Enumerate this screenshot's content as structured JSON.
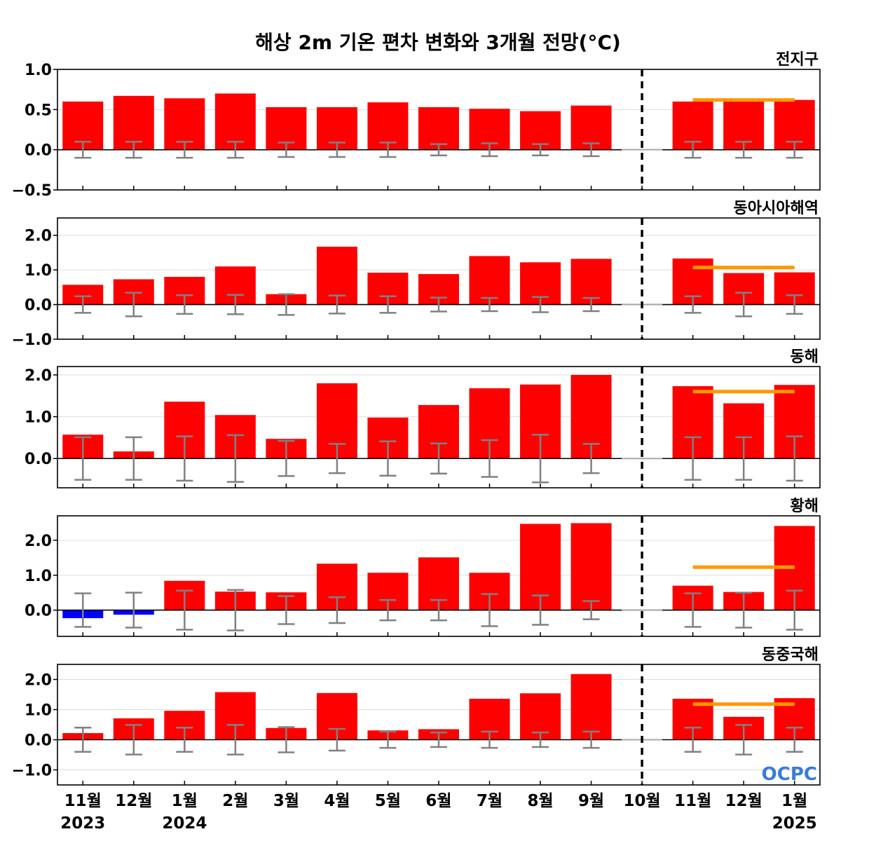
{
  "title": "해상 2m 기온 편차 변화와 3개월 전망(°C)",
  "logo": "OCPC",
  "colors": {
    "positive": "#ff0000",
    "negative": "#0000ff",
    "forecast": "#ff9900",
    "errorbar": "#808080",
    "divider": "#000000"
  },
  "months": [
    "11월",
    "12월",
    "1월",
    "2월",
    "3월",
    "4월",
    "5월",
    "6월",
    "7월",
    "8월",
    "9월",
    "10월",
    "11월",
    "12월",
    "1월"
  ],
  "years": [
    {
      "label": "2023",
      "month_index": 0
    },
    {
      "label": "2024",
      "month_index": 2
    },
    {
      "label": "2025",
      "month_index": 14
    }
  ],
  "divider_month_index": 11,
  "chart_data": [
    {
      "type": "bar",
      "title": "전지구",
      "ylim": [
        -0.5,
        1.0
      ],
      "yticks": [
        -0.5,
        0.0,
        0.5,
        1.0
      ],
      "tick_labels": [
        "−0.5",
        "0.0",
        "0.5",
        "1.0"
      ],
      "values": [
        0.6,
        0.67,
        0.64,
        0.7,
        0.53,
        0.53,
        0.59,
        0.53,
        0.51,
        0.48,
        0.55,
        0.0,
        0.6,
        0.62,
        0.62
      ],
      "error_bars": [
        0.1,
        0.1,
        0.1,
        0.1,
        0.09,
        0.09,
        0.09,
        0.07,
        0.08,
        0.07,
        0.08,
        null,
        0.1,
        0.1,
        0.1
      ],
      "forecast": {
        "value": 0.62,
        "start_index": 12,
        "end_index": 14
      }
    },
    {
      "type": "bar",
      "title": "동아시아해역",
      "ylim": [
        -1.0,
        2.5
      ],
      "yticks": [
        -1.0,
        0.0,
        1.0,
        2.0
      ],
      "tick_labels": [
        "−1.0",
        "0.0",
        "1.0",
        "2.0"
      ],
      "values": [
        0.57,
        0.73,
        0.8,
        1.1,
        0.3,
        1.67,
        0.92,
        0.88,
        1.4,
        1.22,
        1.32,
        0.0,
        1.33,
        0.91,
        0.93
      ],
      "error_bars": [
        0.24,
        0.34,
        0.27,
        0.28,
        0.3,
        0.26,
        0.24,
        0.2,
        0.19,
        0.22,
        0.19,
        null,
        0.24,
        0.34,
        0.27
      ],
      "forecast": {
        "value": 1.07,
        "start_index": 12,
        "end_index": 14
      }
    },
    {
      "type": "bar",
      "title": "동해",
      "ylim": [
        -0.7,
        2.2
      ],
      "yticks": [
        0.0,
        1.0,
        2.0
      ],
      "tick_labels": [
        "0.0",
        "1.0",
        "2.0"
      ],
      "values": [
        0.57,
        0.17,
        1.36,
        1.04,
        0.47,
        1.8,
        0.98,
        1.28,
        1.68,
        1.77,
        2.0,
        0.0,
        1.73,
        1.32,
        1.76
      ],
      "error_bars": [
        0.51,
        0.51,
        0.53,
        0.56,
        0.42,
        0.35,
        0.41,
        0.36,
        0.44,
        0.57,
        0.35,
        null,
        0.51,
        0.51,
        0.53
      ],
      "forecast": {
        "value": 1.6,
        "start_index": 12,
        "end_index": 14
      }
    },
    {
      "type": "bar",
      "title": "황해",
      "ylim": [
        -0.75,
        2.7
      ],
      "yticks": [
        0.0,
        1.0,
        2.0
      ],
      "tick_labels": [
        "0.0",
        "1.0",
        "2.0"
      ],
      "values": [
        -0.23,
        -0.13,
        0.84,
        0.53,
        0.51,
        1.33,
        1.07,
        1.51,
        1.07,
        2.47,
        2.49,
        0.0,
        0.7,
        0.52,
        2.41
      ],
      "error_bars": [
        0.48,
        0.5,
        0.56,
        0.58,
        0.4,
        0.37,
        0.29,
        0.29,
        0.46,
        0.42,
        0.26,
        null,
        0.48,
        0.5,
        0.56
      ],
      "forecast": {
        "value": 1.23,
        "start_index": 12,
        "end_index": 14
      }
    },
    {
      "type": "bar",
      "title": "동중국해",
      "ylim": [
        -1.5,
        2.5
      ],
      "yticks": [
        -1.0,
        0.0,
        1.0,
        2.0
      ],
      "tick_labels": [
        "−1.0",
        "0.0",
        "1.0",
        "2.0"
      ],
      "values": [
        0.22,
        0.71,
        0.96,
        1.58,
        0.39,
        1.55,
        0.31,
        0.35,
        1.36,
        1.54,
        2.18,
        0.0,
        1.36,
        0.76,
        1.38
      ],
      "error_bars": [
        0.4,
        0.49,
        0.4,
        0.49,
        0.42,
        0.36,
        0.27,
        0.24,
        0.27,
        0.24,
        0.27,
        null,
        0.4,
        0.49,
        0.4
      ],
      "forecast": {
        "value": 1.18,
        "start_index": 12,
        "end_index": 14
      }
    }
  ]
}
